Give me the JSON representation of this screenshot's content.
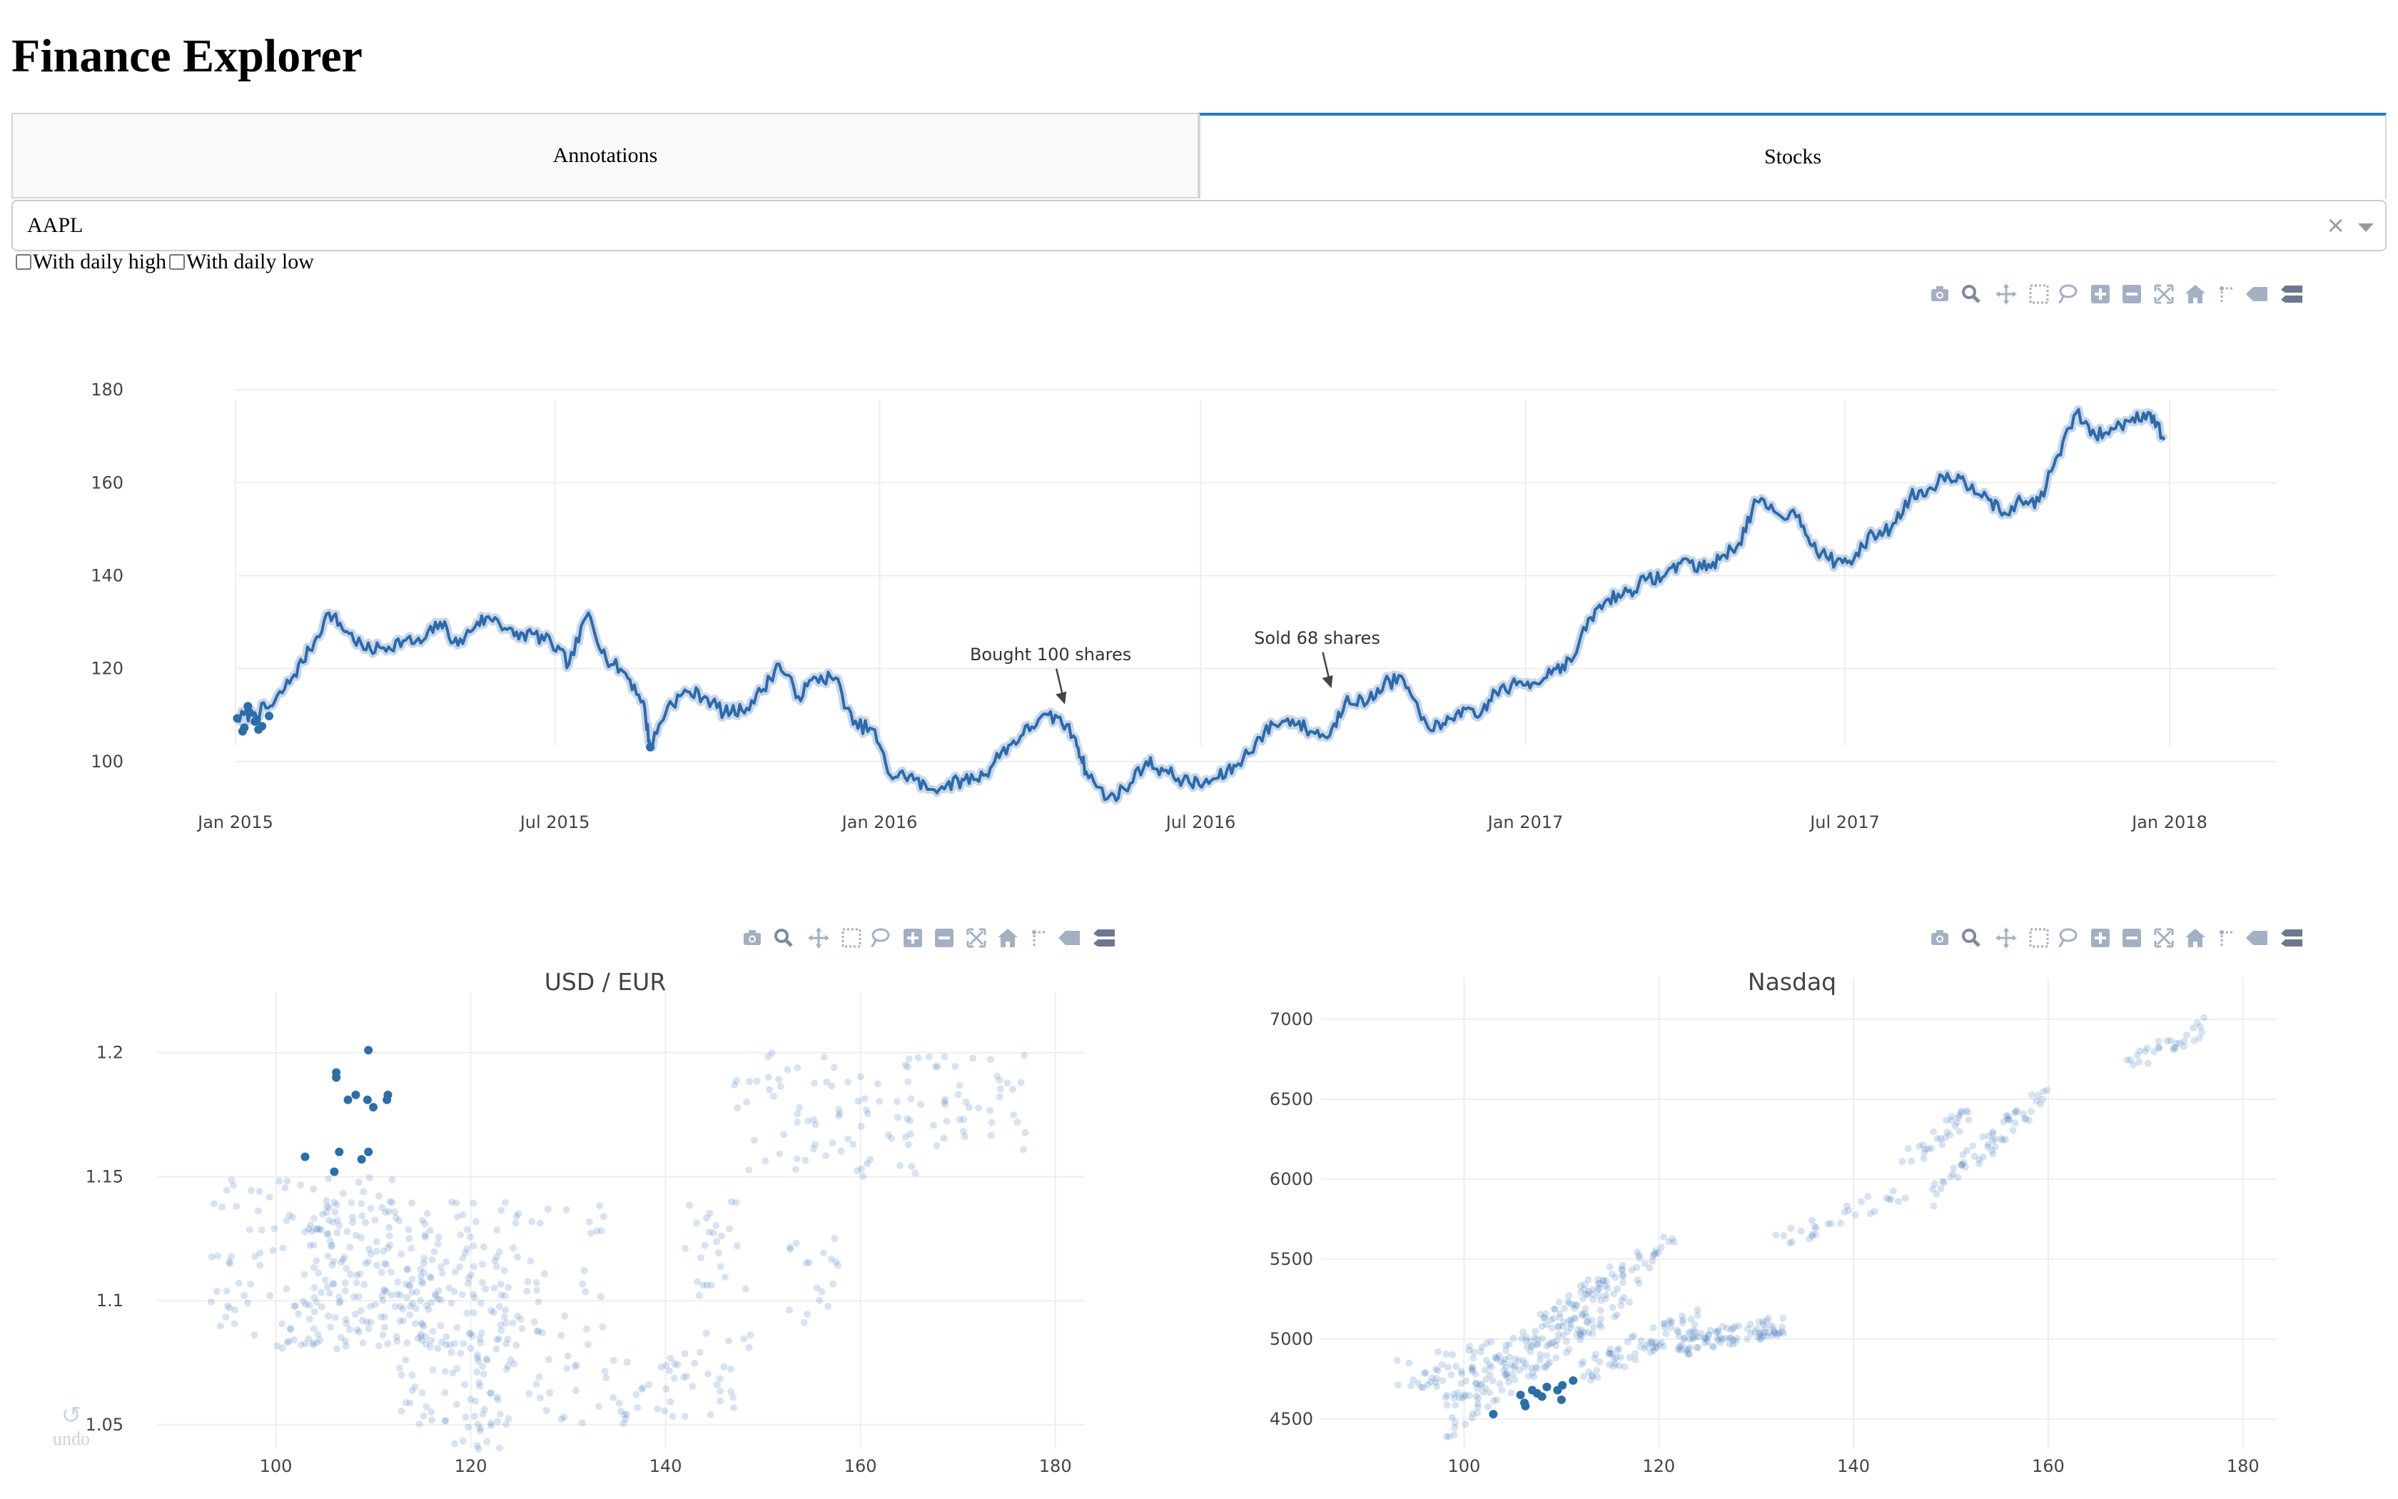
{
  "app": {
    "title": "Finance Explorer"
  },
  "tabs": [
    {
      "label": "Annotations",
      "active": false
    },
    {
      "label": "Stocks",
      "active": true
    }
  ],
  "ticker_select": {
    "value": "AAPL"
  },
  "options": {
    "daily_high_label": "With daily high",
    "daily_low_label": "With daily low"
  },
  "colors": {
    "line": "#2c6aab",
    "marker": "#2b6ea8",
    "grid": "#eeeeee",
    "axis_text": "#444444",
    "tab_accent": "#1f78d1"
  },
  "undo_label": "undo",
  "modebar_icons": [
    "camera-icon",
    "zoom-icon",
    "pan-icon",
    "box-select-icon",
    "lasso-icon",
    "zoom-in-icon",
    "zoom-out-icon",
    "autoscale-icon",
    "reset-axes-icon",
    "spike-lines-icon",
    "hover-closest-icon",
    "hover-compare-icon"
  ],
  "chart_data": [
    {
      "type": "line",
      "title": "",
      "xlabel": "",
      "ylabel": "",
      "x_ticks": [
        "Jan 2015",
        "Jul 2015",
        "Jan 2016",
        "Jul 2016",
        "Jan 2017",
        "Jul 2017",
        "Jan 2018"
      ],
      "y_ticks": [
        100,
        120,
        140,
        160,
        180
      ],
      "xlim": [
        "2015-01-01",
        "2018-01-01"
      ],
      "ylim": [
        88,
        184
      ],
      "grid": true,
      "series": [
        {
          "values": [
            [
              "2015-01-02",
              109.3
            ],
            [
              "2015-01-12",
              110.5
            ],
            [
              "2015-01-22",
              112
            ],
            [
              "2015-02-02",
              118
            ],
            [
              "2015-02-12",
              124
            ],
            [
              "2015-02-23",
              132
            ],
            [
              "2015-03-05",
              128
            ],
            [
              "2015-03-16",
              124
            ],
            [
              "2015-03-26",
              124.5
            ],
            [
              "2015-04-06",
              126
            ],
            [
              "2015-04-16",
              125.5
            ],
            [
              "2015-04-27",
              130
            ],
            [
              "2015-05-07",
              125
            ],
            [
              "2015-05-18",
              130
            ],
            [
              "2015-05-28",
              131
            ],
            [
              "2015-06-08",
              127
            ],
            [
              "2015-06-18",
              127.5
            ],
            [
              "2015-06-29",
              125.5
            ],
            [
              "2015-07-09",
              121
            ],
            [
              "2015-07-20",
              132
            ],
            [
              "2015-07-30",
              122
            ],
            [
              "2015-08-10",
              119
            ],
            [
              "2015-08-20",
              113
            ],
            [
              "2015-08-24",
              103
            ],
            [
              "2015-09-03",
              112
            ],
            [
              "2015-09-14",
              115
            ],
            [
              "2015-09-24",
              114
            ],
            [
              "2015-10-05",
              110.5
            ],
            [
              "2015-10-15",
              111
            ],
            [
              "2015-10-26",
              115
            ],
            [
              "2015-11-05",
              121
            ],
            [
              "2015-11-16",
              114
            ],
            [
              "2015-11-26",
              118
            ],
            [
              "2015-12-07",
              118
            ],
            [
              "2015-12-17",
              108
            ],
            [
              "2015-12-28",
              107
            ],
            [
              "2016-01-07",
              97
            ],
            [
              "2016-01-18",
              97
            ],
            [
              "2016-01-28",
              94
            ],
            [
              "2016-02-08",
              95
            ],
            [
              "2016-02-18",
              96
            ],
            [
              "2016-02-29",
              97
            ],
            [
              "2016-03-10",
              102
            ],
            [
              "2016-03-21",
              105.5
            ],
            [
              "2016-03-31",
              109
            ],
            [
              "2016-04-11",
              109.5
            ],
            [
              "2016-04-21",
              105
            ],
            [
              "2016-04-27",
              97.8
            ],
            [
              "2016-05-09",
              92
            ],
            [
              "2016-05-19",
              94
            ],
            [
              "2016-05-31",
              100
            ],
            [
              "2016-06-10",
              98
            ],
            [
              "2016-06-21",
              96
            ],
            [
              "2016-06-30",
              95
            ],
            [
              "2016-07-11",
              96.5
            ],
            [
              "2016-07-21",
              99
            ],
            [
              "2016-08-01",
              104
            ],
            [
              "2016-08-11",
              108
            ],
            [
              "2016-08-22",
              109
            ],
            [
              "2016-09-01",
              106.5
            ],
            [
              "2016-09-12",
              105.5
            ],
            [
              "2016-09-22",
              114
            ],
            [
              "2016-10-03",
              112.5
            ],
            [
              "2016-10-13",
              117
            ],
            [
              "2016-10-24",
              117.5
            ],
            [
              "2016-11-03",
              109
            ],
            [
              "2016-11-14",
              107
            ],
            [
              "2016-11-24",
              111
            ],
            [
              "2016-12-05",
              109.5
            ],
            [
              "2016-12-15",
              115
            ],
            [
              "2016-12-27",
              116.5
            ],
            [
              "2017-01-06",
              117
            ],
            [
              "2017-01-17",
              120
            ],
            [
              "2017-01-27",
              121.5
            ],
            [
              "2017-02-07",
              131
            ],
            [
              "2017-02-17",
              135
            ],
            [
              "2017-02-28",
              136.5
            ],
            [
              "2017-03-10",
              139
            ],
            [
              "2017-03-21",
              140
            ],
            [
              "2017-03-31",
              143.5
            ],
            [
              "2017-04-11",
              141.5
            ],
            [
              "2017-04-21",
              143.5
            ],
            [
              "2017-05-02",
              147
            ],
            [
              "2017-05-12",
              156
            ],
            [
              "2017-05-23",
              153.5
            ],
            [
              "2017-06-05",
              153
            ],
            [
              "2017-06-15",
              145
            ],
            [
              "2017-06-26",
              143
            ],
            [
              "2017-07-06",
              143.5
            ],
            [
              "2017-07-17",
              149
            ],
            [
              "2017-07-27",
              150
            ],
            [
              "2017-08-07",
              157
            ],
            [
              "2017-08-17",
              158.5
            ],
            [
              "2017-08-28",
              162
            ],
            [
              "2017-09-07",
              160
            ],
            [
              "2017-09-18",
              158
            ],
            [
              "2017-09-28",
              153
            ],
            [
              "2017-10-09",
              156
            ],
            [
              "2017-10-19",
              156
            ],
            [
              "2017-10-30",
              166
            ],
            [
              "2017-11-09",
              175
            ],
            [
              "2017-11-20",
              170
            ],
            [
              "2017-11-30",
              171.5
            ],
            [
              "2017-12-11",
              174
            ],
            [
              "2017-12-21",
              175
            ],
            [
              "2017-12-29",
              169.2
            ]
          ]
        }
      ],
      "selected_points": [
        [
          "2015-01-02",
          109.3
        ],
        [
          "2015-01-05",
          106.5
        ],
        [
          "2015-01-06",
          107.3
        ],
        [
          "2015-01-08",
          111.9
        ],
        [
          "2015-01-09",
          110.5
        ],
        [
          "2015-01-12",
          108.6
        ],
        [
          "2015-01-13",
          109
        ],
        [
          "2015-01-14",
          106.9
        ],
        [
          "2015-01-16",
          107.6
        ],
        [
          "2015-01-20",
          109.8
        ],
        [
          "2015-08-24",
          103.1
        ]
      ],
      "annotations": [
        {
          "text": "Bought 100 shares",
          "x": "2016-04-15",
          "y": 112
        },
        {
          "text": "Sold 68 shares",
          "x": "2016-09-13",
          "y": 115.5
        }
      ]
    },
    {
      "type": "scatter",
      "title": "USD / EUR",
      "xlabel": "",
      "ylabel": "",
      "x_ticks": [
        100,
        120,
        140,
        160,
        180
      ],
      "y_ticks": [
        1.05,
        1.1,
        1.15,
        1.2
      ],
      "xlim": [
        90,
        182
      ],
      "ylim": [
        1.033,
        1.21
      ],
      "grid": true,
      "cloud": [
        {
          "x": [
            93,
            112
          ],
          "y": [
            1.08,
            1.15
          ],
          "n": 120
        },
        {
          "x": [
            102,
            117
          ],
          "y": [
            1.08,
            1.14
          ],
          "n": 140
        },
        {
          "x": [
            112,
            124
          ],
          "y": [
            1.04,
            1.12
          ],
          "n": 110
        },
        {
          "x": [
            118,
            134
          ],
          "y": [
            1.05,
            1.14
          ],
          "n": 110
        },
        {
          "x": [
            133,
            147
          ],
          "y": [
            1.05,
            1.08
          ],
          "n": 45
        },
        {
          "x": [
            142,
            149
          ],
          "y": [
            1.08,
            1.14
          ],
          "n": 30
        },
        {
          "x": [
            147,
            166
          ],
          "y": [
            1.15,
            1.2
          ],
          "n": 70
        },
        {
          "x": [
            152,
            158
          ],
          "y": [
            1.09,
            1.13
          ],
          "n": 18
        },
        {
          "x": [
            164,
            177
          ],
          "y": [
            1.16,
            1.2
          ],
          "n": 45
        }
      ],
      "selected_points": [
        [
          106.2,
          1.192
        ],
        [
          106.2,
          1.19
        ],
        [
          107.4,
          1.181
        ],
        [
          108.2,
          1.183
        ],
        [
          109.5,
          1.201
        ],
        [
          109.4,
          1.181
        ],
        [
          110,
          1.178
        ],
        [
          111.4,
          1.181
        ],
        [
          111.5,
          1.183
        ],
        [
          103,
          1.158
        ],
        [
          106.5,
          1.16
        ],
        [
          108.8,
          1.157
        ],
        [
          109.5,
          1.16
        ],
        [
          106,
          1.152
        ]
      ]
    },
    {
      "type": "scatter",
      "title": "Nasdaq",
      "xlabel": "",
      "ylabel": "",
      "x_ticks": [
        100,
        120,
        140,
        160,
        180
      ],
      "y_ticks": [
        4500,
        5000,
        5500,
        6000,
        6500,
        7000
      ],
      "xlim": [
        90,
        182
      ],
      "ylim": [
        4200,
        7080
      ],
      "grid": true,
      "cloud_bands": [
        {
          "x": [
            93,
            106
          ],
          "x_to_y": [
            4750,
            4900
          ],
          "spread": 250,
          "n": 60
        },
        {
          "x": [
            98,
            118
          ],
          "x_to_y": [
            4500,
            5400
          ],
          "spread": 300,
          "n": 150
        },
        {
          "x": [
            106,
            122
          ],
          "x_to_y": [
            5000,
            5650
          ],
          "spread": 200,
          "n": 70
        },
        {
          "x": [
            112,
            124
          ],
          "x_to_y": [
            4800,
            5100
          ],
          "spread": 180,
          "n": 70
        },
        {
          "x": [
            122,
            133
          ],
          "x_to_y": [
            4950,
            5100
          ],
          "spread": 140,
          "n": 90
        },
        {
          "x": [
            132,
            146
          ],
          "x_to_y": [
            5600,
            5950
          ],
          "spread": 120,
          "n": 30
        },
        {
          "x": [
            145,
            152
          ],
          "x_to_y": [
            6100,
            6400
          ],
          "spread": 150,
          "n": 30
        },
        {
          "x": [
            148,
            160
          ],
          "x_to_y": [
            5900,
            6550
          ],
          "spread": 180,
          "n": 60
        },
        {
          "x": [
            168,
            176
          ],
          "x_to_y": [
            6700,
            6950
          ],
          "spread": 120,
          "n": 30
        }
      ],
      "selected_points": [
        [
          105.8,
          4650
        ],
        [
          106.2,
          4600
        ],
        [
          106.3,
          4580
        ],
        [
          107,
          4680
        ],
        [
          107.5,
          4660
        ],
        [
          108.5,
          4700
        ],
        [
          109.6,
          4680
        ],
        [
          110.1,
          4710
        ],
        [
          111.2,
          4740
        ],
        [
          103,
          4530
        ],
        [
          110,
          4620
        ],
        [
          108,
          4640
        ]
      ]
    }
  ]
}
